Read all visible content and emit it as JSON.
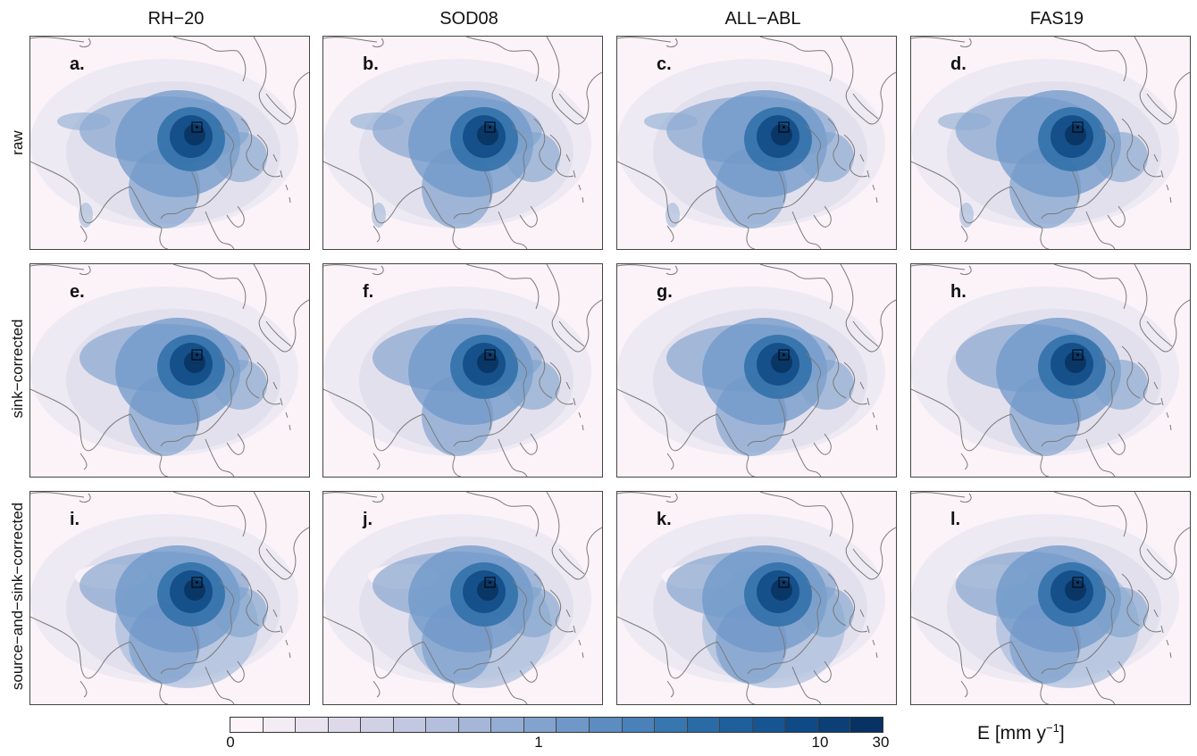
{
  "columns": [
    "RH−20",
    "SOD08",
    "ALL−ABL",
    "FAS19"
  ],
  "rows": [
    "raw",
    "sink−corrected",
    "source−and−sink−corrected"
  ],
  "panel_labels": [
    "a.",
    "b.",
    "c.",
    "d.",
    "e.",
    "f.",
    "g.",
    "h.",
    "i.",
    "j.",
    "k.",
    "l."
  ],
  "colorbar": {
    "ticks": [
      "0",
      "1",
      "10",
      "30"
    ],
    "unit_label": "E [mm y",
    "unit_exponent": "−1",
    "unit_close": "]",
    "colors": [
      "#fdf4fa",
      "#f4ecf5",
      "#e9e3ef",
      "#ddd9ea",
      "#d1d1e6",
      "#c3c8e2",
      "#b4bfdd",
      "#a5b6d8",
      "#94add4",
      "#83a3cf",
      "#6f98c8",
      "#5c8cc0",
      "#4981b8",
      "#3776af",
      "#2a6aa5",
      "#1f5f9b",
      "#175592",
      "#104a86",
      "#0b3f76",
      "#073263"
    ],
    "scale": "log-like"
  },
  "map": {
    "region": "East Asia",
    "sink_marker": "square box over eastern China",
    "palette_background": "#fbf3f8",
    "coast_color": "#7a7a7a"
  }
}
